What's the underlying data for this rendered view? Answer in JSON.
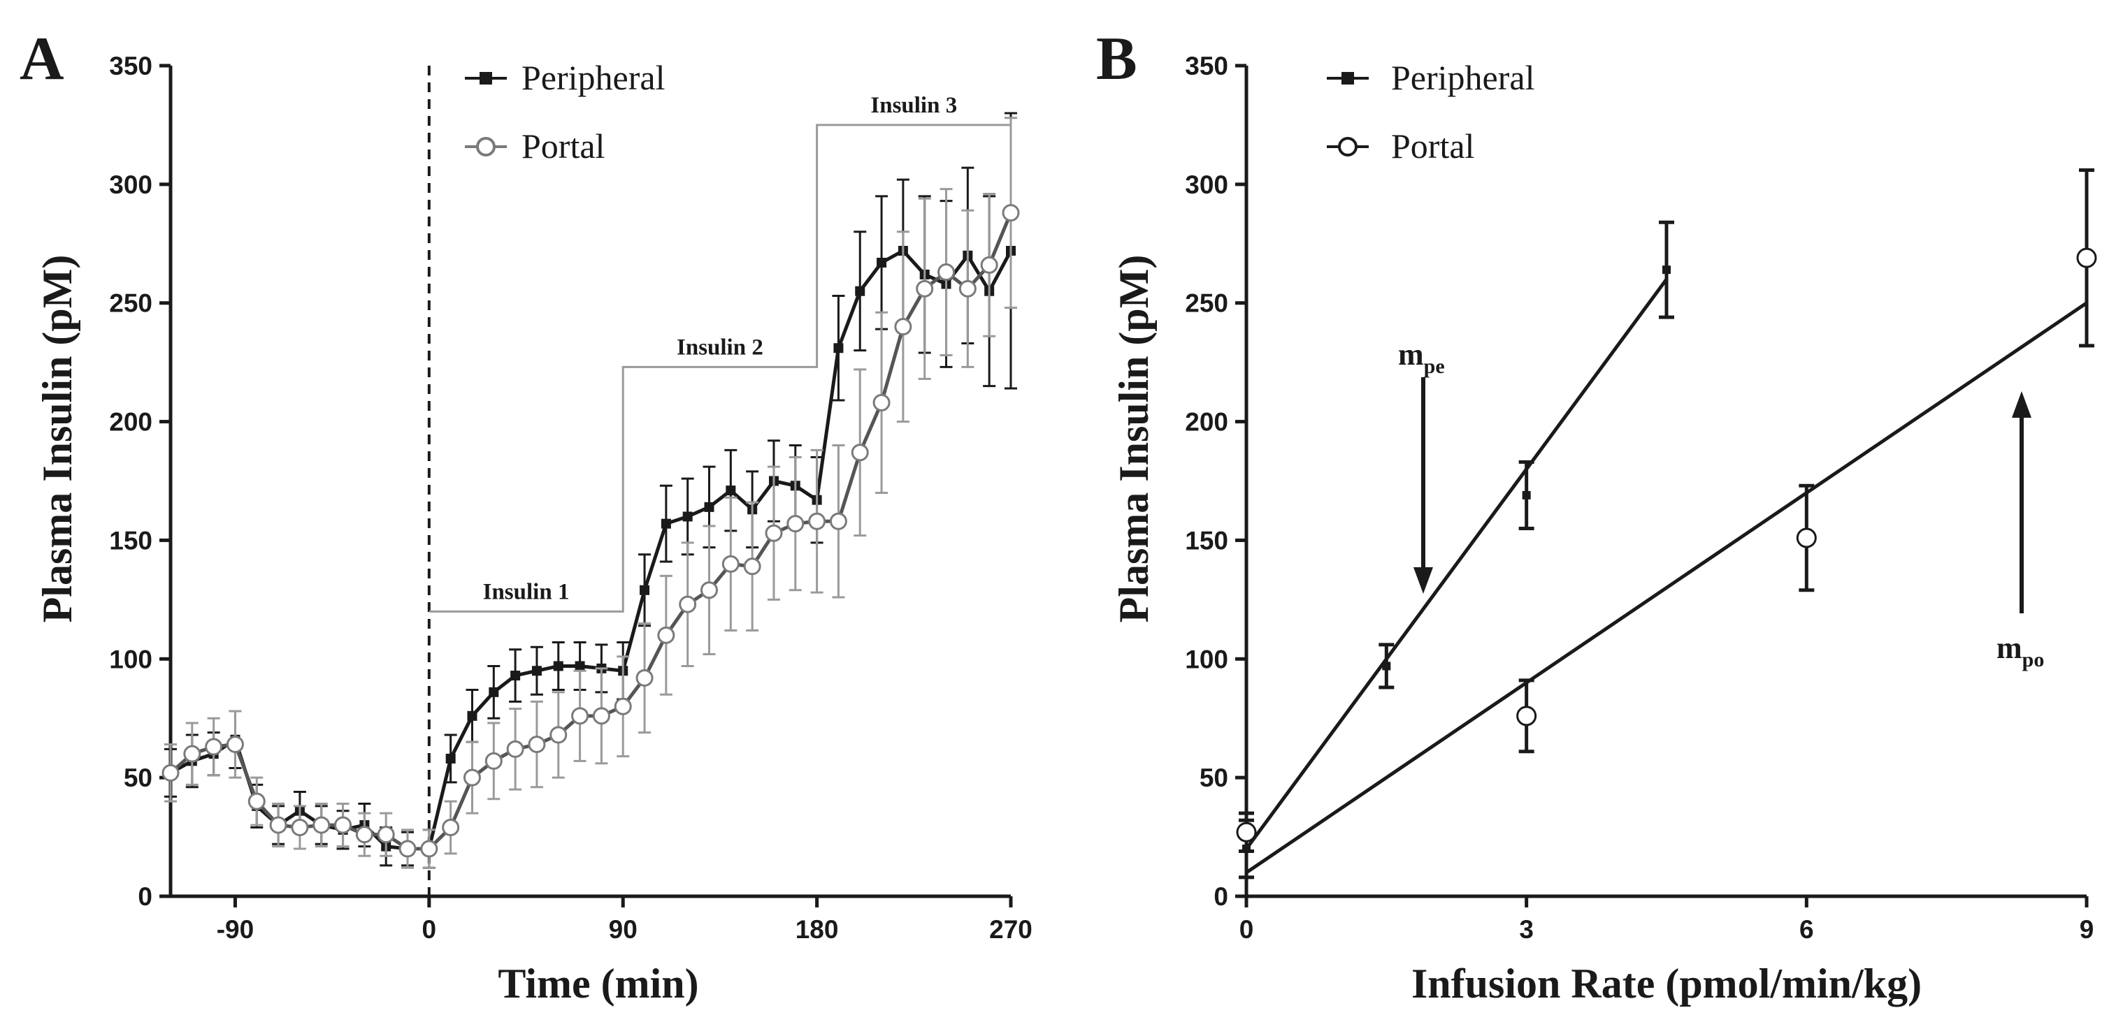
{
  "chart_data": [
    {
      "panel": "A",
      "type": "line",
      "xlabel": "Time (min)",
      "ylabel": "Plasma Insulin (pM)",
      "xlim": [
        -120,
        270
      ],
      "ylim": [
        0,
        350
      ],
      "xticks": [
        -90,
        0,
        90,
        180,
        270
      ],
      "yticks": [
        0,
        50,
        100,
        150,
        200,
        250,
        300,
        350
      ],
      "legend": "top-left",
      "annotations": [
        {
          "text": "Insulin 1",
          "x": 45,
          "y": 120
        },
        {
          "text": "Insulin 2",
          "x": 135,
          "y": 223
        },
        {
          "text": "Insulin 3",
          "x": 225,
          "y": 325
        }
      ],
      "infusion_steps": [
        [
          0,
          120
        ],
        [
          90,
          120
        ],
        [
          90,
          223
        ],
        [
          180,
          223
        ],
        [
          180,
          325
        ],
        [
          270,
          325
        ]
      ],
      "series": [
        {
          "name": "Peripheral",
          "marker": "square",
          "color": "#1a1a1a",
          "x": [
            -120,
            -110,
            -100,
            -90,
            -80,
            -70,
            -60,
            -50,
            -40,
            -30,
            -20,
            -10,
            0,
            10,
            20,
            30,
            40,
            50,
            60,
            70,
            80,
            90,
            100,
            110,
            120,
            130,
            140,
            150,
            160,
            170,
            180,
            190,
            200,
            210,
            220,
            230,
            240,
            250,
            260,
            270
          ],
          "y": [
            52,
            57,
            60,
            66,
            38,
            30,
            36,
            30,
            28,
            30,
            21,
            20,
            20,
            58,
            76,
            86,
            93,
            95,
            97,
            97,
            96,
            95,
            129,
            157,
            160,
            164,
            171,
            163,
            175,
            173,
            167,
            231,
            255,
            267,
            272,
            262,
            258,
            270,
            255,
            272
          ],
          "err": [
            10,
            11,
            9,
            12,
            9,
            8,
            8,
            8,
            8,
            9,
            8,
            7,
            8,
            10,
            11,
            11,
            11,
            10,
            10,
            10,
            10,
            12,
            15,
            16,
            16,
            17,
            17,
            16,
            17,
            17,
            18,
            22,
            25,
            28,
            30,
            33,
            35,
            37,
            40,
            58
          ]
        },
        {
          "name": "Portal",
          "marker": "open-circle",
          "color": "#7a7a7a",
          "x": [
            -120,
            -110,
            -100,
            -90,
            -80,
            -70,
            -60,
            -50,
            -40,
            -30,
            -20,
            -10,
            0,
            10,
            20,
            30,
            40,
            50,
            60,
            70,
            80,
            90,
            100,
            110,
            120,
            130,
            140,
            150,
            160,
            170,
            180,
            190,
            200,
            210,
            220,
            230,
            240,
            250,
            260,
            270
          ],
          "y": [
            52,
            60,
            63,
            64,
            40,
            30,
            29,
            30,
            30,
            26,
            26,
            20,
            20,
            29,
            50,
            57,
            62,
            64,
            68,
            76,
            76,
            80,
            92,
            110,
            123,
            129,
            140,
            139,
            153,
            157,
            158,
            158,
            187,
            208,
            240,
            256,
            263,
            256,
            266,
            288
          ],
          "err": [
            12,
            13,
            12,
            14,
            10,
            9,
            9,
            9,
            9,
            9,
            9,
            8,
            8,
            11,
            15,
            16,
            17,
            18,
            18,
            19,
            20,
            21,
            23,
            25,
            26,
            27,
            28,
            27,
            28,
            28,
            30,
            32,
            35,
            38,
            40,
            38,
            35,
            33,
            30,
            40
          ]
        }
      ]
    },
    {
      "panel": "B",
      "type": "scatter",
      "xlabel": "Infusion Rate (pmol/min/kg)",
      "ylabel": "Plasma Insulin (pM)",
      "xlim": [
        0,
        9
      ],
      "ylim": [
        0,
        350
      ],
      "xticks": [
        0,
        3,
        6,
        9
      ],
      "yticks": [
        0,
        50,
        100,
        150,
        200,
        250,
        300,
        350
      ],
      "legend": "top-left",
      "annotations": [
        {
          "text": "m",
          "sub": "pe",
          "arrow": "down",
          "x": 1.87
        },
        {
          "text": "m",
          "sub": "po",
          "arrow": "up",
          "x": 8.3
        }
      ],
      "series": [
        {
          "name": "Peripheral",
          "marker": "square",
          "color": "#1a1a1a",
          "x": [
            0,
            1.5,
            3,
            4.5
          ],
          "y": [
            20,
            97,
            169,
            264
          ],
          "err": [
            12,
            9,
            14,
            20
          ],
          "fit": {
            "x": [
              0,
              4.5
            ],
            "y": [
              20,
              260
            ]
          }
        },
        {
          "name": "Portal",
          "marker": "open-circle",
          "color": "#1a1a1a",
          "x": [
            0,
            3,
            6,
            9
          ],
          "y": [
            27,
            76,
            151,
            269
          ],
          "err": [
            8,
            15,
            22,
            37
          ],
          "fit": {
            "x": [
              0,
              9
            ],
            "y": [
              10,
              250
            ]
          }
        }
      ]
    }
  ],
  "panels": {
    "a": {
      "letter": "A",
      "ylabel": "Plasma Insulin (pM)",
      "xlabel": "Time (min)",
      "legend": [
        "Peripheral",
        "Portal"
      ],
      "steps": [
        "Insulin 1",
        "Insulin 2",
        "Insulin 3"
      ]
    },
    "b": {
      "letter": "B",
      "ylabel": "Plasma Insulin (pM)",
      "xlabel": "Infusion Rate (pmol/min/kg)",
      "legend": [
        "Peripheral",
        "Portal"
      ],
      "m_pe": {
        "main": "m",
        "sub": "pe"
      },
      "m_po": {
        "main": "m",
        "sub": "po"
      }
    }
  }
}
